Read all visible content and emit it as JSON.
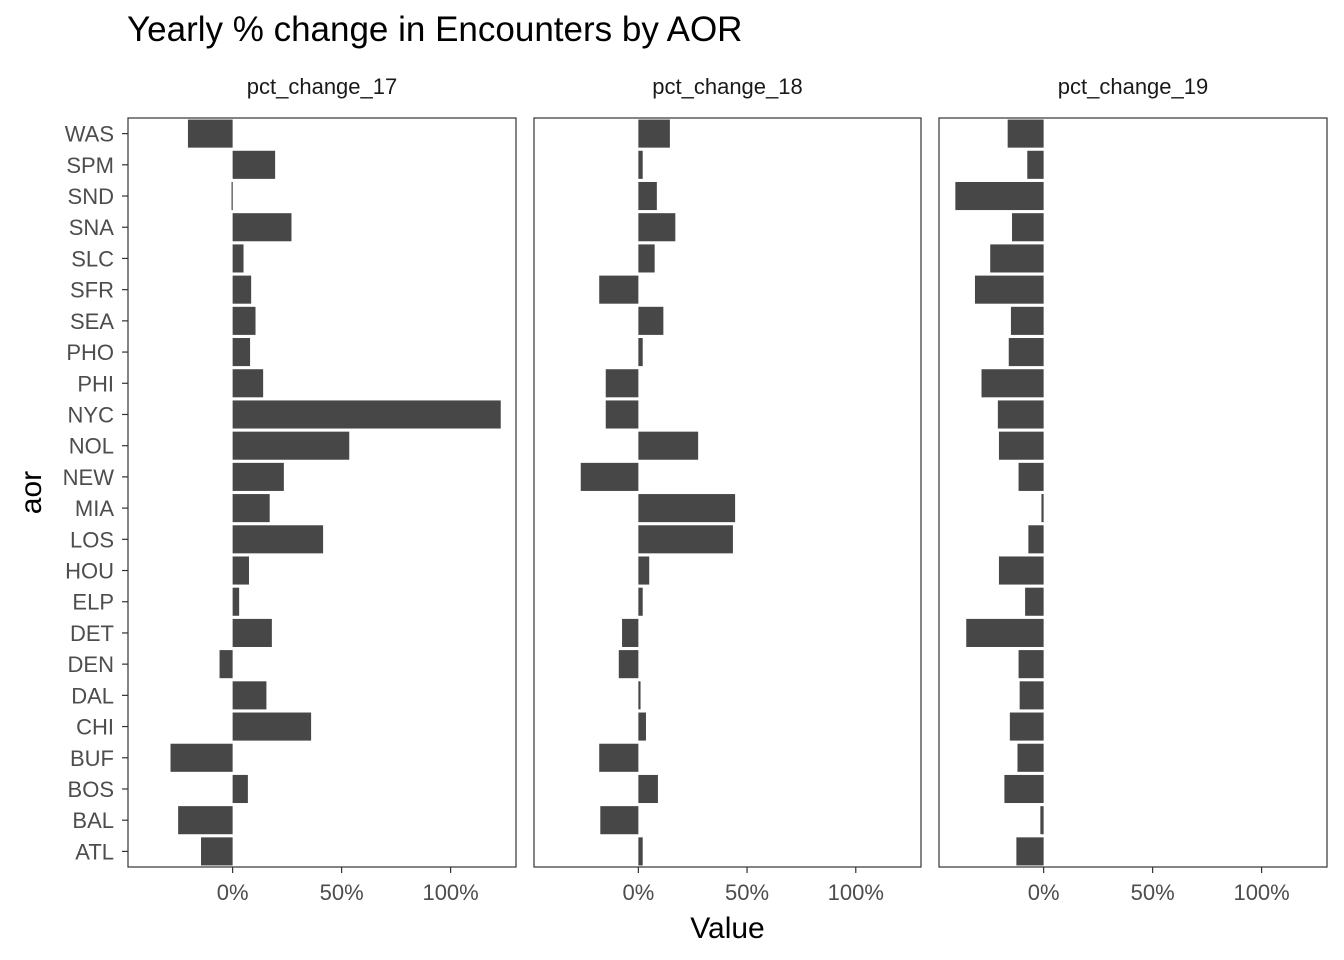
{
  "chart_data": {
    "type": "bar",
    "orientation": "horizontal",
    "title": "Yearly % change in Encounters by AOR",
    "xlabel": "Value",
    "ylabel": "aor",
    "xlim": [
      -0.48,
      1.3
    ],
    "x_ticks": [
      0,
      0.5,
      1.0
    ],
    "x_tick_labels": [
      "0%",
      "50%",
      "100%"
    ],
    "grid": false,
    "legend": "none",
    "bar_color": "#474747",
    "panel_border_color": "#333333",
    "categories": [
      "WAS",
      "SPM",
      "SND",
      "SNA",
      "SLC",
      "SFR",
      "SEA",
      "PHO",
      "PHI",
      "NYC",
      "NOL",
      "NEW",
      "MIA",
      "LOS",
      "HOU",
      "ELP",
      "DET",
      "DEN",
      "DAL",
      "CHI",
      "BUF",
      "BOS",
      "BAL",
      "ATL"
    ],
    "facets": [
      {
        "name": "pct_change_17",
        "values": [
          -0.205,
          0.195,
          -0.005,
          0.27,
          0.05,
          0.085,
          0.105,
          0.08,
          0.14,
          1.23,
          0.535,
          0.235,
          0.17,
          0.415,
          0.075,
          0.03,
          0.18,
          -0.06,
          0.155,
          0.36,
          -0.285,
          0.07,
          -0.25,
          -0.145
        ]
      },
      {
        "name": "pct_change_18",
        "values": [
          0.145,
          0.02,
          0.085,
          0.17,
          0.075,
          -0.18,
          0.115,
          0.02,
          -0.15,
          -0.15,
          0.275,
          -0.265,
          0.445,
          0.435,
          0.05,
          0.02,
          -0.075,
          -0.09,
          0.01,
          0.035,
          -0.18,
          0.09,
          -0.175,
          0.02
        ]
      },
      {
        "name": "pct_change_19",
        "values": [
          -0.165,
          -0.075,
          -0.405,
          -0.145,
          -0.245,
          -0.315,
          -0.15,
          -0.16,
          -0.285,
          -0.21,
          -0.205,
          -0.115,
          -0.01,
          -0.07,
          -0.205,
          -0.085,
          -0.355,
          -0.115,
          -0.11,
          -0.155,
          -0.12,
          -0.18,
          -0.015,
          -0.125
        ]
      }
    ]
  }
}
